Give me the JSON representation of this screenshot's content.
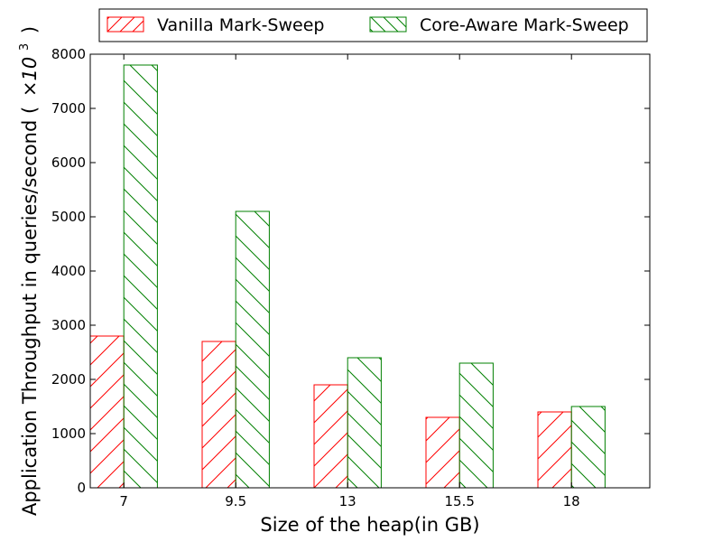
{
  "chart_data": {
    "type": "bar",
    "categories": [
      "7",
      "9.5",
      "13",
      "15.5",
      "18"
    ],
    "series": [
      {
        "name": "Vanilla Mark-Sweep",
        "values": [
          2800,
          2700,
          1900,
          1300,
          1400
        ],
        "color": "#ff0000",
        "hatch": "forward"
      },
      {
        "name": "Core-Aware Mark-Sweep",
        "values": [
          7800,
          5100,
          2400,
          2300,
          1500
        ],
        "color": "#008000",
        "hatch": "backward"
      }
    ],
    "xlabel": "Size of the heap(in GB)",
    "ylabel_main": "Application Throughput in queries/second (",
    "ylabel_times": "×10",
    "ylabel_exp": "3",
    "ylabel_close": ")",
    "ylim": [
      0,
      8000
    ],
    "yticks": [
      0,
      1000,
      2000,
      3000,
      4000,
      5000,
      6000,
      7000,
      8000
    ],
    "grid": false,
    "legend_position": "top-center"
  }
}
